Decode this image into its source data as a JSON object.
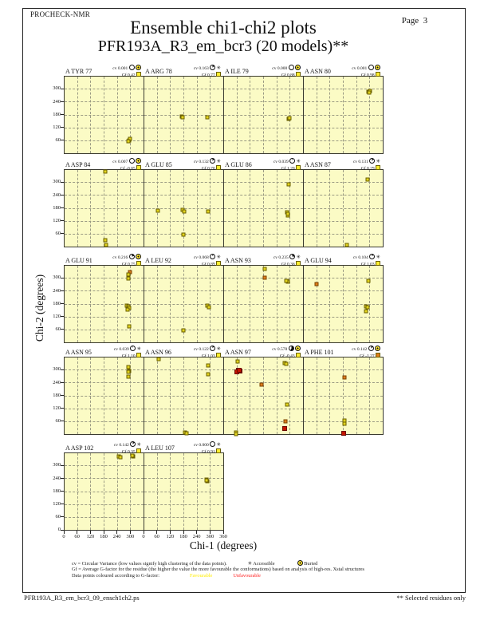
{
  "header": {
    "app_label": "PROCHECK-NMR",
    "title": "Ensemble chi1-chi2 plots",
    "subtitle": "PFR193A_R3_em_bcr3 (20 models)**",
    "page_label": "Page  3"
  },
  "axes": {
    "xlabel": "Chi-1 (degrees)",
    "ylabel": "Chi-2 (degrees)",
    "xlim": [
      0,
      360
    ],
    "ylim": [
      0,
      360
    ],
    "x_ticks": [
      0,
      60,
      120,
      180,
      240,
      300,
      360
    ],
    "y_ticks": [
      0,
      60,
      120,
      180,
      240,
      300
    ],
    "grid_step_degrees": 60
  },
  "legend": {
    "cv_line": "cv = Circular Variance (low values signify high clustering of the data points).",
    "accessible_label": "Accessible",
    "buried_label": "Buried",
    "gf_line": "Gf = Average G-factor for the residue (the higher the value the more favourable the conformations)  based on analysis of high-res. Xstal structures",
    "colour_line": "Data points coloured according to G-factor:",
    "favourable_label": "Favourable",
    "unfavourable_label": "Unfavourable"
  },
  "footer": {
    "filename": "PFR193A_R3_em_bcr3_09_ensch1ch2.ps",
    "note": "** Selected residues only"
  },
  "colors": {
    "plot_bg": "#fbfbc5",
    "favourable": "#ffee00",
    "unfavourable": "#ff2020",
    "point_yellow": "#e2d31e",
    "point_orange": "#de7d1c",
    "point_red": "#c41400",
    "gf_fav_square": "#ffee30",
    "gf_unfav_square": "#de7d1c"
  },
  "chart_data": {
    "type": "scatter",
    "title": "Ensemble chi1-chi2 plots",
    "xlabel": "Chi-1 (degrees)",
    "ylabel": "Chi-2 (degrees)",
    "xlim": [
      0,
      360
    ],
    "ylim": [
      0,
      360
    ],
    "point_color_key": {
      "y": "favourable (yellow)",
      "o": "intermediate (orange)",
      "r": "unfavourable (red)"
    },
    "subplots": [
      {
        "name": "A TYR 77",
        "row": 0,
        "col": 0,
        "cv": "0.001",
        "gf": "0.42",
        "access": "buried",
        "gf_color": "fav",
        "points": [
          [
            294,
            62,
            "y"
          ],
          [
            297,
            68,
            "y"
          ],
          [
            291,
            57,
            "y"
          ]
        ]
      },
      {
        "name": "A ARG 78",
        "row": 0,
        "col": 1,
        "cv": "0.163",
        "gf": "0.77",
        "access": "accessible",
        "gf_color": "fav",
        "points": [
          [
            170,
            172,
            "y"
          ],
          [
            175,
            168,
            "y"
          ],
          [
            286,
            170,
            "y"
          ]
        ]
      },
      {
        "name": "A ILE 79",
        "row": 0,
        "col": 2,
        "cv": "0.000",
        "gf": "0.88",
        "access": "buried",
        "gf_color": "fav",
        "points": [
          [
            294,
            162,
            "y"
          ],
          [
            297,
            166,
            "y"
          ]
        ]
      },
      {
        "name": "A ASN 80",
        "row": 0,
        "col": 3,
        "cv": "0.001",
        "gf": "0.98",
        "access": "buried",
        "gf_color": "fav",
        "points": [
          [
            295,
            288,
            "y"
          ],
          [
            300,
            293,
            "y"
          ],
          [
            297,
            283,
            "y"
          ]
        ]
      },
      {
        "name": "A ASP 84",
        "row": 1,
        "col": 0,
        "cv": "0.007",
        "gf": "-0.05",
        "access": "buried",
        "gf_color": "fav",
        "points": [
          [
            186,
            350,
            "y"
          ],
          [
            185,
            30,
            "y"
          ],
          [
            188,
            8,
            "y"
          ]
        ]
      },
      {
        "name": "A GLU 85",
        "row": 1,
        "col": 1,
        "cv": "0.132",
        "gf": "0.70",
        "access": "accessible",
        "gf_color": "fav",
        "points": [
          [
            64,
            170,
            "y"
          ],
          [
            176,
            172,
            "y"
          ],
          [
            181,
            167,
            "y"
          ],
          [
            288,
            166,
            "y"
          ],
          [
            179,
            58,
            "y"
          ]
        ]
      },
      {
        "name": "A GLU 86",
        "row": 1,
        "col": 2,
        "cv": "0.039",
        "gf": "1.20",
        "access": "accessible",
        "gf_color": "fav",
        "points": [
          [
            294,
            290,
            "y"
          ],
          [
            287,
            162,
            "y"
          ],
          [
            289,
            148,
            "y"
          ],
          [
            291,
            155,
            "y"
          ]
        ]
      },
      {
        "name": "A ASN 87",
        "row": 1,
        "col": 3,
        "cv": "0.131",
        "gf": "0.29",
        "access": "accessible",
        "gf_color": "fav",
        "points": [
          [
            289,
            314,
            "y"
          ],
          [
            197,
            9,
            "y"
          ]
        ]
      },
      {
        "name": "A GLU 91",
        "row": 2,
        "col": 0,
        "cv": "0.216",
        "gf": "0.75",
        "access": "buried",
        "gf_color": "fav",
        "points": [
          [
            296,
            330,
            "o"
          ],
          [
            291,
            318,
            "y"
          ],
          [
            289,
            300,
            "y"
          ],
          [
            283,
            174,
            "y"
          ],
          [
            290,
            170,
            "y"
          ],
          [
            294,
            162,
            "y"
          ],
          [
            287,
            155,
            "y"
          ],
          [
            294,
            76,
            "y"
          ]
        ]
      },
      {
        "name": "A LEU 92",
        "row": 2,
        "col": 1,
        "cv": "0.068",
        "gf": "0.89",
        "access": "accessible",
        "gf_color": "fav",
        "points": [
          [
            287,
            172,
            "y"
          ],
          [
            292,
            167,
            "y"
          ],
          [
            179,
            57,
            "y"
          ]
        ]
      },
      {
        "name": "A ASN 93",
        "row": 2,
        "col": 2,
        "cv": "0.235",
        "gf": "0.36",
        "access": "accessible",
        "gf_color": "fav",
        "points": [
          [
            186,
            344,
            "y"
          ],
          [
            185,
            302,
            "o"
          ],
          [
            286,
            288,
            "y"
          ],
          [
            291,
            283,
            "y"
          ],
          [
            282,
            286,
            "y"
          ]
        ]
      },
      {
        "name": "A GLU 94",
        "row": 2,
        "col": 3,
        "cv": "0.104",
        "gf": "1.03",
        "access": "accessible",
        "gf_color": "fav",
        "points": [
          [
            61,
            271,
            "o"
          ],
          [
            294,
            287,
            "y"
          ],
          [
            282,
            170,
            "y"
          ],
          [
            288,
            164,
            "y"
          ],
          [
            284,
            146,
            "y"
          ]
        ]
      },
      {
        "name": "A ASN 95",
        "row": 3,
        "col": 0,
        "cv": "0.039",
        "gf": "1.10",
        "access": "accessible",
        "gf_color": "fav",
        "points": [
          [
            291,
            312,
            "y"
          ],
          [
            295,
            294,
            "y"
          ],
          [
            288,
            292,
            "y"
          ],
          [
            291,
            268,
            "y"
          ]
        ]
      },
      {
        "name": "A ASN 96",
        "row": 3,
        "col": 1,
        "cv": "0.122",
        "gf": "1.03",
        "access": "accessible",
        "gf_color": "fav",
        "points": [
          [
            65,
            352,
            "y"
          ],
          [
            289,
            320,
            "y"
          ],
          [
            291,
            281,
            "y"
          ],
          [
            185,
            8,
            "y"
          ],
          [
            193,
            5,
            "y"
          ]
        ]
      },
      {
        "name": "A ASN 97",
        "row": 3,
        "col": 2,
        "cv": "0.578",
        "gf": "-0.43",
        "access": "buried",
        "gf_color": "fav",
        "points": [
          [
            62,
            340,
            "y"
          ],
          [
            66,
            297,
            "r"
          ],
          [
            72,
            294,
            "r"
          ],
          [
            60,
            292,
            "r"
          ],
          [
            69,
            300,
            "r"
          ],
          [
            171,
            231,
            "o"
          ],
          [
            277,
            331,
            "y"
          ],
          [
            283,
            329,
            "y"
          ],
          [
            287,
            139,
            "y"
          ],
          [
            280,
            61,
            "o"
          ],
          [
            276,
            26,
            "r"
          ],
          [
            54,
            8,
            "y"
          ],
          [
            57,
            2,
            "y"
          ]
        ]
      },
      {
        "name": "A PHE 101",
        "row": 3,
        "col": 3,
        "cv": "0.142",
        "gf": "-1.27",
        "access": "buried",
        "gf_color": "unfav",
        "points": [
          [
            186,
            264,
            "o"
          ],
          [
            187,
            66,
            "y"
          ],
          [
            184,
            49,
            "y"
          ],
          [
            181,
            4,
            "r"
          ]
        ]
      },
      {
        "name": "A ASP 102",
        "row": 4,
        "col": 0,
        "cv": "0.142",
        "gf": "0.35",
        "access": "accessible",
        "gf_color": "fav",
        "points": [
          [
            247,
            344,
            "y"
          ],
          [
            252,
            339,
            "y"
          ],
          [
            313,
            342,
            "y"
          ],
          [
            309,
            347,
            "y"
          ]
        ]
      },
      {
        "name": "A LEU 107",
        "row": 4,
        "col": 1,
        "cv": "0.000",
        "gf": "0.91",
        "access": "accessible",
        "gf_color": "fav",
        "points": [
          [
            282,
            237,
            "y"
          ],
          [
            286,
            227,
            "y"
          ],
          [
            284,
            232,
            "y"
          ]
        ]
      }
    ]
  }
}
